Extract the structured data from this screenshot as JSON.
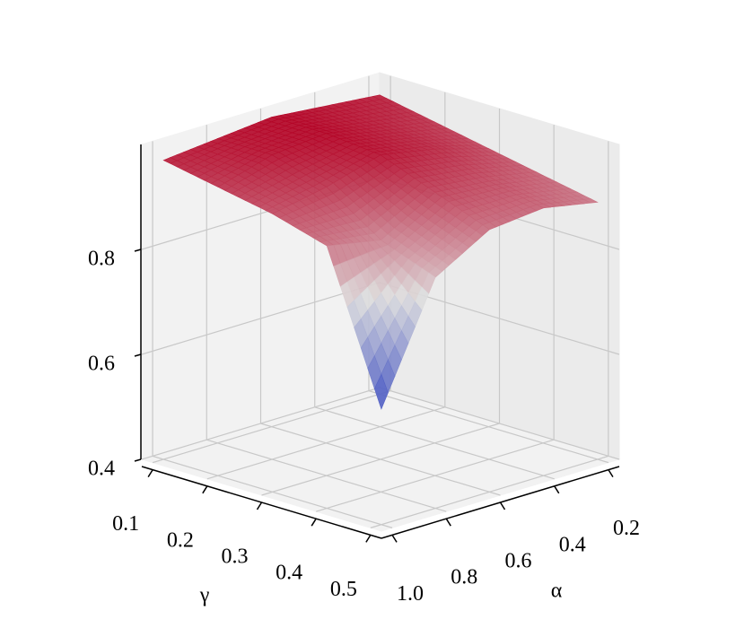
{
  "chart_data": {
    "type": "surface",
    "x_label": "α",
    "y_label": "γ",
    "x": [
      0.2,
      0.4,
      0.6,
      0.8,
      1.0
    ],
    "y": [
      0.1,
      0.2,
      0.3,
      0.4,
      0.5
    ],
    "z": [
      [
        0.97,
        0.98,
        0.99,
        0.98,
        0.97
      ],
      [
        0.95,
        0.97,
        0.99,
        0.98,
        0.95
      ],
      [
        0.93,
        0.96,
        0.98,
        0.95,
        0.93
      ],
      [
        0.91,
        0.93,
        0.94,
        0.88,
        0.9
      ],
      [
        0.89,
        0.91,
        0.9,
        0.84,
        0.62
      ]
    ],
    "xlim": [
      0.16,
      1.04
    ],
    "ylim": [
      0.08,
      0.52
    ],
    "zlim": [
      0.4,
      1.0
    ],
    "xticks": [
      0.2,
      0.4,
      0.6,
      0.8,
      {
        "value": 1,
        "label": "1.0"
      }
    ],
    "yticks": [
      0.1,
      0.2,
      0.3,
      0.4,
      0.5
    ],
    "zticks": [
      0.4,
      0.6,
      0.8
    ],
    "colors": [
      "#3b4cc0",
      "#dddddd",
      "#b40426"
    ],
    "grid": true
  }
}
